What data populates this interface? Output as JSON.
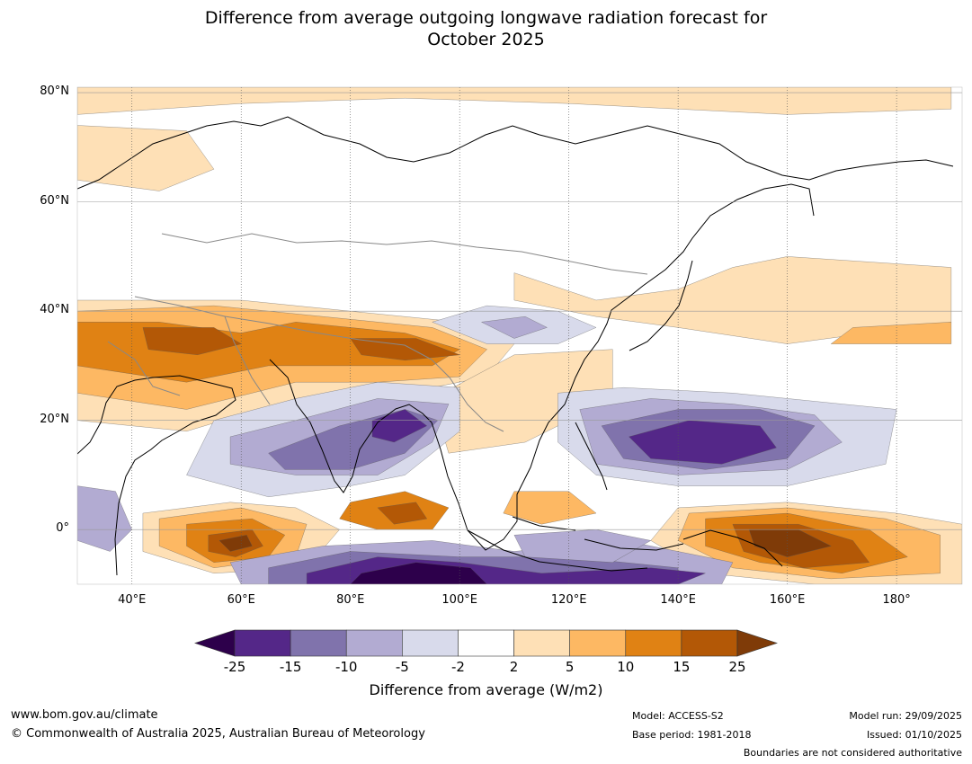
{
  "title": {
    "line1": "Difference from average outgoing longwave radiation forecast for",
    "line2": "October 2025"
  },
  "axes": {
    "latitudes": [
      {
        "label": "80°N",
        "value": 80
      },
      {
        "label": "60°N",
        "value": 60
      },
      {
        "label": "40°N",
        "value": 40
      },
      {
        "label": "20°N",
        "value": 20
      },
      {
        "label": "0°",
        "value": 0
      }
    ],
    "longitudes": [
      {
        "label": "40°E",
        "value": 40
      },
      {
        "label": "60°E",
        "value": 60
      },
      {
        "label": "80°E",
        "value": 80
      },
      {
        "label": "100°E",
        "value": 100
      },
      {
        "label": "120°E",
        "value": 120
      },
      {
        "label": "140°E",
        "value": 140
      },
      {
        "label": "160°E",
        "value": 160
      },
      {
        "label": "180°",
        "value": 180
      }
    ],
    "lon_range": [
      30,
      192
    ],
    "lat_range": [
      -10,
      81
    ]
  },
  "colorbar": {
    "title": "Difference from average (W/m2)",
    "ticks": [
      "-25",
      "-15",
      "-10",
      "-5",
      "-2",
      "2",
      "5",
      "10",
      "15",
      "25"
    ],
    "under_color": "#2d004b",
    "over_color": "#7f3b08",
    "colors": [
      "#542788",
      "#8073ac",
      "#b2abd2",
      "#d8daeb",
      "#ffffff",
      "#fee0b6",
      "#fdb863",
      "#e08214",
      "#b35806"
    ]
  },
  "map_regions": [
    {
      "name": "arctic-positive-band",
      "level": 5,
      "points": [
        [
          30,
          81
        ],
        [
          190,
          81
        ],
        [
          190,
          77
        ],
        [
          160,
          76
        ],
        [
          120,
          78
        ],
        [
          90,
          79
        ],
        [
          60,
          78
        ],
        [
          30,
          76
        ]
      ]
    },
    {
      "name": "scandinavia-positive",
      "level": 5,
      "points": [
        [
          30,
          74
        ],
        [
          50,
          73
        ],
        [
          55,
          66
        ],
        [
          45,
          62
        ],
        [
          30,
          64
        ]
      ]
    },
    {
      "name": "northeast-asia-positive",
      "level": 5,
      "points": [
        [
          110,
          47
        ],
        [
          125,
          42
        ],
        [
          140,
          44
        ],
        [
          150,
          48
        ],
        [
          160,
          50
        ],
        [
          190,
          48
        ],
        [
          190,
          38
        ],
        [
          160,
          34
        ],
        [
          140,
          37
        ],
        [
          125,
          39
        ],
        [
          110,
          42
        ]
      ]
    },
    {
      "name": "north-pacific-positive",
      "level": 6,
      "points": [
        [
          168,
          34
        ],
        [
          190,
          34
        ],
        [
          190,
          38
        ],
        [
          172,
          37
        ]
      ]
    },
    {
      "name": "middle-east-positive-outer",
      "level": 5,
      "points": [
        [
          30,
          42
        ],
        [
          60,
          42
        ],
        [
          80,
          40
        ],
        [
          100,
          38
        ],
        [
          110,
          34
        ],
        [
          105,
          28
        ],
        [
          90,
          25
        ],
        [
          70,
          24
        ],
        [
          50,
          18
        ],
        [
          30,
          20
        ]
      ]
    },
    {
      "name": "middle-east-positive-mid",
      "level": 6,
      "points": [
        [
          30,
          40
        ],
        [
          55,
          41
        ],
        [
          75,
          39
        ],
        [
          95,
          37
        ],
        [
          105,
          33
        ],
        [
          100,
          28
        ],
        [
          85,
          27
        ],
        [
          70,
          27
        ],
        [
          50,
          22
        ],
        [
          30,
          25
        ]
      ]
    },
    {
      "name": "middle-east-positive-inner",
      "level": 7,
      "points": [
        [
          30,
          38
        ],
        [
          45,
          38
        ],
        [
          60,
          36
        ],
        [
          70,
          38
        ],
        [
          80,
          37
        ],
        [
          90,
          36
        ],
        [
          100,
          33
        ],
        [
          95,
          30
        ],
        [
          80,
          30
        ],
        [
          65,
          30
        ],
        [
          50,
          27
        ],
        [
          30,
          30
        ]
      ]
    },
    {
      "name": "middle-east-positive-core-w",
      "level": 8,
      "points": [
        [
          42,
          37
        ],
        [
          55,
          37
        ],
        [
          60,
          34
        ],
        [
          52,
          32
        ],
        [
          43,
          33
        ]
      ]
    },
    {
      "name": "middle-east-positive-core-e",
      "level": 8,
      "points": [
        [
          80,
          35
        ],
        [
          92,
          35
        ],
        [
          100,
          32
        ],
        [
          90,
          31
        ],
        [
          82,
          32
        ]
      ]
    },
    {
      "name": "china-positive",
      "level": 6,
      "points": [
        [
          100,
          25
        ],
        [
          108,
          27
        ],
        [
          120,
          30
        ],
        [
          125,
          28
        ],
        [
          120,
          24
        ],
        [
          110,
          20
        ],
        [
          102,
          18
        ]
      ]
    },
    {
      "name": "china-positive-outer",
      "level": 5,
      "points": [
        [
          95,
          24
        ],
        [
          110,
          32
        ],
        [
          128,
          33
        ],
        [
          128,
          24
        ],
        [
          112,
          16
        ],
        [
          98,
          14
        ]
      ]
    },
    {
      "name": "central-asia-negative-light",
      "level": -2,
      "points": [
        [
          95,
          38
        ],
        [
          105,
          41
        ],
        [
          118,
          40
        ],
        [
          125,
          37
        ],
        [
          118,
          34
        ],
        [
          105,
          34
        ]
      ]
    },
    {
      "name": "china-north-negative",
      "level": -5,
      "points": [
        [
          104,
          38
        ],
        [
          112,
          39
        ],
        [
          116,
          37
        ],
        [
          110,
          35
        ]
      ]
    },
    {
      "name": "indian-ocean-negative-outer",
      "level": -2,
      "points": [
        [
          55,
          20
        ],
        [
          70,
          24
        ],
        [
          85,
          27
        ],
        [
          100,
          26
        ],
        [
          100,
          18
        ],
        [
          90,
          10
        ],
        [
          80,
          8
        ],
        [
          65,
          6
        ],
        [
          50,
          10
        ]
      ]
    },
    {
      "name": "indian-ocean-negative-mid",
      "level": -5,
      "points": [
        [
          58,
          17
        ],
        [
          70,
          20
        ],
        [
          85,
          24
        ],
        [
          98,
          23
        ],
        [
          95,
          16
        ],
        [
          85,
          10
        ],
        [
          70,
          10
        ],
        [
          58,
          12
        ]
      ]
    },
    {
      "name": "indian-ocean-negative-inner",
      "level": -10,
      "points": [
        [
          65,
          14
        ],
        [
          78,
          19
        ],
        [
          90,
          22
        ],
        [
          96,
          20
        ],
        [
          90,
          14
        ],
        [
          80,
          11
        ],
        [
          68,
          11
        ]
      ]
    },
    {
      "name": "bay-of-bengal-negative-core",
      "level": -15,
      "points": [
        [
          84,
          20
        ],
        [
          90,
          22
        ],
        [
          94,
          19
        ],
        [
          88,
          16
        ],
        [
          84,
          17
        ]
      ]
    },
    {
      "name": "west-pacific-negative-outer",
      "level": -2,
      "points": [
        [
          118,
          25
        ],
        [
          130,
          26
        ],
        [
          150,
          25
        ],
        [
          170,
          23
        ],
        [
          180,
          22
        ],
        [
          178,
          12
        ],
        [
          160,
          8
        ],
        [
          140,
          8
        ],
        [
          125,
          10
        ],
        [
          118,
          16
        ]
      ]
    },
    {
      "name": "west-pacific-negative-mid",
      "level": -5,
      "points": [
        [
          122,
          22
        ],
        [
          135,
          24
        ],
        [
          150,
          23
        ],
        [
          165,
          21
        ],
        [
          170,
          16
        ],
        [
          160,
          11
        ],
        [
          140,
          10
        ],
        [
          125,
          12
        ]
      ]
    },
    {
      "name": "west-pacific-negative-inner",
      "level": -10,
      "points": [
        [
          126,
          19
        ],
        [
          140,
          22
        ],
        [
          155,
          22
        ],
        [
          165,
          19
        ],
        [
          160,
          13
        ],
        [
          145,
          11
        ],
        [
          130,
          13
        ]
      ]
    },
    {
      "name": "west-pacific-negative-core",
      "level": -15,
      "points": [
        [
          131,
          17
        ],
        [
          142,
          20
        ],
        [
          155,
          19
        ],
        [
          158,
          15
        ],
        [
          148,
          12
        ],
        [
          135,
          13
        ]
      ]
    },
    {
      "name": "east-africa-negative",
      "level": -5,
      "points": [
        [
          30,
          8
        ],
        [
          37,
          7
        ],
        [
          40,
          0
        ],
        [
          36,
          -4
        ],
        [
          30,
          -2
        ]
      ]
    },
    {
      "name": "pacific-positive-outer",
      "level": 5,
      "points": [
        [
          140,
          4
        ],
        [
          160,
          5
        ],
        [
          180,
          3
        ],
        [
          192,
          1
        ],
        [
          192,
          -10
        ],
        [
          165,
          -10
        ],
        [
          145,
          -8
        ],
        [
          135,
          -2
        ]
      ]
    },
    {
      "name": "pacific-positive-mid",
      "level": 6,
      "points": [
        [
          142,
          3
        ],
        [
          160,
          4
        ],
        [
          178,
          2
        ],
        [
          188,
          -1
        ],
        [
          188,
          -8
        ],
        [
          168,
          -9
        ],
        [
          150,
          -7
        ],
        [
          140,
          -2
        ]
      ]
    },
    {
      "name": "pacific-positive-inner",
      "level": 7,
      "points": [
        [
          145,
          2
        ],
        [
          160,
          3
        ],
        [
          175,
          0
        ],
        [
          182,
          -5
        ],
        [
          170,
          -8
        ],
        [
          155,
          -6
        ],
        [
          145,
          -3
        ]
      ]
    },
    {
      "name": "pacific-positive-core",
      "level": 8,
      "points": [
        [
          150,
          1
        ],
        [
          162,
          1
        ],
        [
          172,
          -2
        ],
        [
          175,
          -6
        ],
        [
          163,
          -7
        ],
        [
          152,
          -4
        ]
      ]
    },
    {
      "name": "pacific-positive-max",
      "level": 9,
      "points": [
        [
          153,
          0
        ],
        [
          162,
          0
        ],
        [
          168,
          -3
        ],
        [
          160,
          -5
        ],
        [
          154,
          -3
        ]
      ]
    },
    {
      "name": "west-indian-ocean-positive-outer",
      "level": 5,
      "points": [
        [
          42,
          3
        ],
        [
          58,
          5
        ],
        [
          70,
          4
        ],
        [
          78,
          0
        ],
        [
          72,
          -7
        ],
        [
          55,
          -8
        ],
        [
          42,
          -4
        ]
      ]
    },
    {
      "name": "west-indian-ocean-positive-mid",
      "level": 6,
      "points": [
        [
          45,
          2
        ],
        [
          60,
          4
        ],
        [
          72,
          1
        ],
        [
          70,
          -5
        ],
        [
          55,
          -7
        ],
        [
          45,
          -3
        ]
      ]
    },
    {
      "name": "west-indian-ocean-positive-inner",
      "level": 7,
      "points": [
        [
          50,
          1
        ],
        [
          62,
          2
        ],
        [
          68,
          -1
        ],
        [
          65,
          -5
        ],
        [
          55,
          -6
        ],
        [
          50,
          -3
        ]
      ]
    },
    {
      "name": "west-indian-ocean-positive-core",
      "level": 8,
      "points": [
        [
          54,
          -1
        ],
        [
          62,
          0
        ],
        [
          64,
          -3
        ],
        [
          59,
          -5
        ],
        [
          54,
          -4
        ]
      ]
    },
    {
      "name": "west-indian-ocean-positive-max",
      "level": 9,
      "points": [
        [
          56,
          -2
        ],
        [
          61,
          -1
        ],
        [
          62,
          -3
        ],
        [
          58,
          -4
        ]
      ]
    },
    {
      "name": "east-indian-ocean-positive",
      "level": 7,
      "points": [
        [
          80,
          5
        ],
        [
          90,
          7
        ],
        [
          98,
          4
        ],
        [
          95,
          0
        ],
        [
          85,
          0
        ],
        [
          78,
          2
        ]
      ]
    },
    {
      "name": "east-indian-ocean-positive-core",
      "level": 8,
      "points": [
        [
          85,
          4
        ],
        [
          92,
          5
        ],
        [
          94,
          2
        ],
        [
          88,
          1
        ]
      ]
    },
    {
      "name": "southern-indian-ocean-negative-outer",
      "level": -5,
      "points": [
        [
          58,
          -6
        ],
        [
          75,
          -3
        ],
        [
          95,
          -2
        ],
        [
          110,
          -4
        ],
        [
          130,
          -2
        ],
        [
          150,
          -6
        ],
        [
          148,
          -10
        ],
        [
          60,
          -10
        ]
      ]
    },
    {
      "name": "southern-indian-ocean-negative-mid",
      "level": -10,
      "points": [
        [
          65,
          -7
        ],
        [
          80,
          -4
        ],
        [
          100,
          -5
        ],
        [
          120,
          -5
        ],
        [
          140,
          -7
        ],
        [
          140,
          -10
        ],
        [
          65,
          -10
        ]
      ]
    },
    {
      "name": "southern-indian-ocean-negative-inner",
      "level": -15,
      "points": [
        [
          72,
          -8
        ],
        [
          85,
          -5
        ],
        [
          100,
          -6
        ],
        [
          115,
          -8
        ],
        [
          135,
          -7
        ],
        [
          145,
          -8
        ],
        [
          140,
          -10
        ],
        [
          72,
          -10
        ]
      ]
    },
    {
      "name": "southern-indian-ocean-negative-core",
      "level": -25,
      "points": [
        [
          82,
          -8
        ],
        [
          92,
          -6
        ],
        [
          102,
          -7
        ],
        [
          105,
          -10
        ],
        [
          80,
          -10
        ]
      ]
    },
    {
      "name": "southeast-asia-positive",
      "level": 6,
      "points": [
        [
          110,
          7
        ],
        [
          120,
          7
        ],
        [
          125,
          3
        ],
        [
          115,
          1
        ],
        [
          108,
          3
        ]
      ]
    },
    {
      "name": "indonesia-negative",
      "level": -5,
      "points": [
        [
          110,
          -1
        ],
        [
          125,
          0
        ],
        [
          135,
          -2
        ],
        [
          128,
          -6
        ],
        [
          112,
          -5
        ]
      ]
    }
  ],
  "footer": {
    "website": "www.bom.gov.au/climate",
    "copyright": "© Commonwealth of Australia 2025, Australian Bureau of Meteorology",
    "model": "Model: ACCESS-S2",
    "base_period": "Base period: 1981-2018",
    "model_run": "Model run: 29/09/2025",
    "issued": "Issued: 01/10/2025",
    "disclaimer": "Boundaries are not considered authoritative"
  }
}
